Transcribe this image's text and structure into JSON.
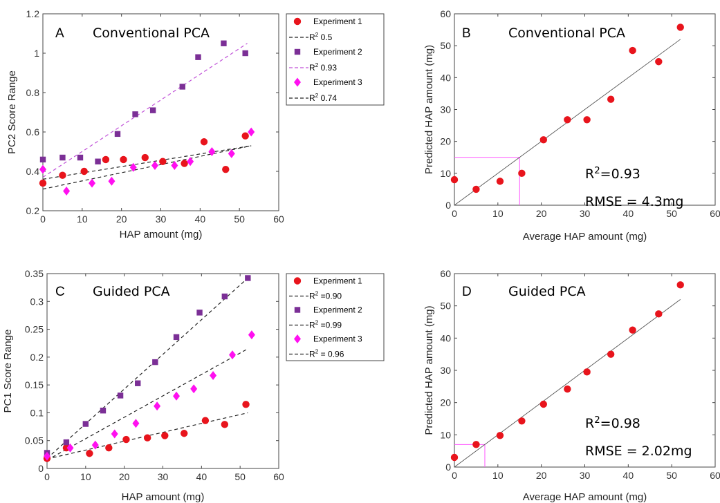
{
  "chart_data": [
    {
      "panel": "A",
      "type": "scatter",
      "title": "Conventional PCA",
      "xlabel": "HAP amount (mg)",
      "ylabel": "PC2 Score Range",
      "xlim": [
        0,
        60
      ],
      "ylim": [
        0.2,
        1.2
      ],
      "xticks": [
        0,
        10,
        20,
        30,
        40,
        50,
        60
      ],
      "yticks": [
        0.2,
        0.4,
        0.6,
        0.8,
        1,
        1.2
      ],
      "ytick_labels": [
        "0.2",
        "0.4",
        "0.6",
        "0.8",
        "1",
        "1.2"
      ],
      "grid": false,
      "legend_position": "outside-right",
      "legend": [
        {
          "text": "Experiment 1",
          "kind": "marker",
          "series": 0
        },
        {
          "text": "R",
          "sup": "2",
          "rest": " 0.5",
          "kind": "line",
          "series": 0
        },
        {
          "text": "Experiment 2",
          "kind": "marker",
          "series": 1
        },
        {
          "text": "R",
          "sup": "2",
          "rest": " 0.93",
          "kind": "line",
          "series": 1
        },
        {
          "text": "Experiment 3",
          "kind": "marker",
          "series": 2
        },
        {
          "text": "R",
          "sup": "2",
          "rest": " 0.74",
          "kind": "line",
          "series": 2
        }
      ],
      "series": [
        {
          "name": "Experiment 1",
          "marker": "circle",
          "color": "#e8141c",
          "line_color": "#222222",
          "x": [
            0,
            5,
            10.5,
            16,
            20.5,
            26,
            30.5,
            36,
            41,
            46.5,
            51.5
          ],
          "y": [
            0.34,
            0.38,
            0.4,
            0.46,
            0.46,
            0.47,
            0.45,
            0.44,
            0.55,
            0.41,
            0.58
          ],
          "fit": [
            [
              0,
              0.36
            ],
            [
              53,
              0.53
            ]
          ]
        },
        {
          "name": "Experiment 2",
          "marker": "square",
          "color": "#7b2f96",
          "line_color": "#c050d8",
          "x": [
            0,
            5,
            9.5,
            14,
            19,
            23.5,
            28,
            35.5,
            39.5,
            46,
            51.5
          ],
          "y": [
            0.46,
            0.47,
            0.47,
            0.45,
            0.59,
            0.69,
            0.71,
            0.83,
            0.98,
            1.05,
            1.0
          ],
          "fit": [
            [
              0,
              0.37
            ],
            [
              52,
              1.05
            ]
          ]
        },
        {
          "name": "Experiment 3",
          "marker": "diamond",
          "color": "#ff10f0",
          "line_color": "#222222",
          "x": [
            0,
            6,
            12.5,
            17.5,
            23,
            28.5,
            33.5,
            37.5,
            43,
            48,
            53
          ],
          "y": [
            0.41,
            0.3,
            0.34,
            0.35,
            0.42,
            0.43,
            0.43,
            0.45,
            0.5,
            0.49,
            0.6
          ],
          "fit": [
            [
              0,
              0.31
            ],
            [
              53,
              0.53
            ]
          ]
        }
      ]
    },
    {
      "panel": "B",
      "type": "scatter",
      "title": "Conventional PCA",
      "xlabel": "Average HAP amount (mg)",
      "ylabel": "Predicted HAP amount (mg)",
      "xlim": [
        0,
        60
      ],
      "ylim": [
        0,
        60
      ],
      "xticks": [
        0,
        10,
        20,
        30,
        40,
        50,
        60
      ],
      "yticks": [
        0,
        10,
        20,
        30,
        40,
        50,
        60
      ],
      "grid": false,
      "stats": [
        {
          "text": "R",
          "sup": "2",
          "rest": "=0.93"
        },
        {
          "text": "RMSE = 4.3mg"
        }
      ],
      "series": [
        {
          "name": "",
          "marker": "circle",
          "color": "#e8141c",
          "x": [
            0,
            5,
            10.5,
            15.5,
            20.5,
            26,
            30.5,
            36,
            41,
            47,
            52
          ],
          "y": [
            8,
            5,
            7.5,
            10,
            20.5,
            26.8,
            26.8,
            33.2,
            48.5,
            45,
            55.8
          ],
          "fit": [
            [
              0,
              0
            ],
            [
              52,
              52
            ]
          ]
        }
      ],
      "guide": {
        "x": 15,
        "y": 15,
        "color": "#ff55ff"
      }
    },
    {
      "panel": "C",
      "type": "scatter",
      "title": "Guided PCA",
      "xlabel": "HAP amount (mg)",
      "ylabel": "PC1 Score Range",
      "xlim": [
        0,
        60
      ],
      "ylim": [
        0,
        0.35
      ],
      "xticks": [
        0,
        10,
        20,
        30,
        40,
        50,
        60
      ],
      "yticks": [
        0,
        0.05,
        0.1,
        0.15,
        0.2,
        0.25,
        0.3,
        0.35
      ],
      "ytick_labels": [
        "0",
        "0.05",
        "0.1",
        "0.15",
        "0.2",
        "0.25",
        "0.3",
        "0.35"
      ],
      "grid": false,
      "legend_position": "outside-right",
      "legend": [
        {
          "text": "Experiment 1",
          "kind": "marker",
          "series": 0
        },
        {
          "text": "R",
          "sup": "2",
          "rest": " =0.90",
          "kind": "line",
          "series": 0
        },
        {
          "text": "Experiment 2",
          "kind": "marker",
          "series": 1
        },
        {
          "text": "R",
          "sup": "2",
          "rest": " =0.99",
          "kind": "line",
          "series": 1
        },
        {
          "text": "Experiment 3",
          "kind": "marker",
          "series": 2
        },
        {
          "text": "R",
          "sup": "2",
          "rest": " = 0.96",
          "kind": "line",
          "series": 2
        }
      ],
      "series": [
        {
          "name": "Experiment 1",
          "marker": "circle",
          "color": "#e8141c",
          "line_color": "#222222",
          "x": [
            0,
            5,
            11,
            16,
            20.5,
            26,
            30.5,
            35.5,
            41,
            46,
            51.5
          ],
          "y": [
            0.018,
            0.037,
            0.027,
            0.037,
            0.052,
            0.055,
            0.059,
            0.063,
            0.086,
            0.079,
            0.115
          ],
          "fit": [
            [
              0,
              0.017
            ],
            [
              52,
              0.1
            ]
          ]
        },
        {
          "name": "Experiment 2",
          "marker": "square",
          "color": "#7b2f96",
          "line_color": "#222222",
          "x": [
            0,
            5,
            10,
            14.5,
            19,
            23.5,
            28,
            33.5,
            39.5,
            46,
            52
          ],
          "y": [
            0.028,
            0.047,
            0.08,
            0.104,
            0.131,
            0.153,
            0.191,
            0.236,
            0.28,
            0.309,
            0.342
          ],
          "fit": [
            [
              0,
              0.018
            ],
            [
              52,
              0.342
            ]
          ]
        },
        {
          "name": "Experiment 3",
          "marker": "diamond",
          "color": "#ff10f0",
          "line_color": "#222222",
          "x": [
            0,
            6,
            12.5,
            17.5,
            23,
            28.5,
            33.5,
            38,
            43,
            48,
            53
          ],
          "y": [
            0.022,
            0.037,
            0.042,
            0.062,
            0.081,
            0.112,
            0.13,
            0.143,
            0.167,
            0.204,
            0.24
          ],
          "fit": [
            [
              0,
              0.015
            ],
            [
              52,
              0.215
            ]
          ]
        }
      ]
    },
    {
      "panel": "D",
      "type": "scatter",
      "title": "Guided PCA",
      "xlabel": "Average HAP amount (mg)",
      "ylabel": "Predicted HAP amount (mg)",
      "xlim": [
        0,
        60
      ],
      "ylim": [
        0,
        60
      ],
      "xticks": [
        0,
        10,
        20,
        30,
        40,
        50,
        60
      ],
      "yticks": [
        0,
        10,
        20,
        30,
        40,
        50,
        60
      ],
      "grid": false,
      "stats": [
        {
          "text": "R",
          "sup": "2",
          "rest": "=0.98"
        },
        {
          "text": "RMSE = 2.02mg"
        }
      ],
      "series": [
        {
          "name": "",
          "marker": "circle",
          "color": "#e8141c",
          "x": [
            0,
            5,
            10.5,
            15.5,
            20.5,
            26,
            30.5,
            36,
            41,
            47,
            52
          ],
          "y": [
            3,
            7,
            9.8,
            14.3,
            19.5,
            24.2,
            29.5,
            35,
            42.5,
            47.5,
            56.5
          ],
          "fit": [
            [
              0,
              0
            ],
            [
              52,
              52
            ]
          ]
        }
      ],
      "guide": {
        "x": 7,
        "y": 7,
        "color": "#ff55ff"
      }
    }
  ]
}
